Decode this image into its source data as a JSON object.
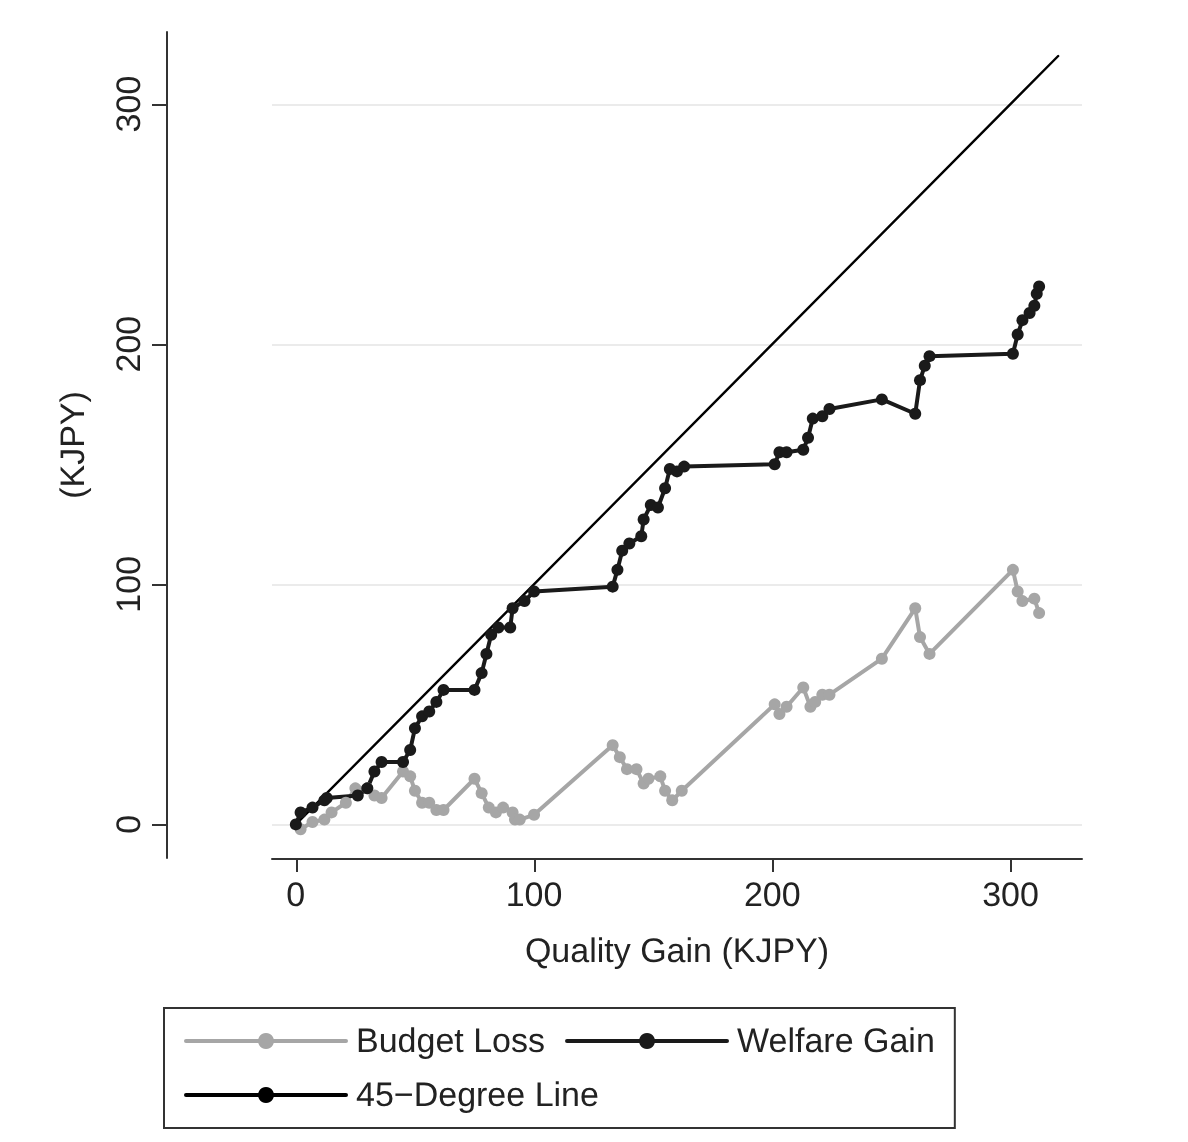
{
  "chart_data": {
    "type": "line",
    "xlabel": "Quality Gain (KJPY)",
    "ylabel": "(KJPY)",
    "xlim": [
      -10,
      330
    ],
    "ylim": [
      -14,
      330
    ],
    "xticks": [
      0,
      100,
      200,
      300
    ],
    "yticks": [
      0,
      100,
      200,
      300
    ],
    "grid": "y",
    "legend": "bottom",
    "series": [
      {
        "name": "Budget Loss",
        "color": "#a6a6a6",
        "marker": "circle",
        "x": [
          2,
          7,
          12,
          15,
          21,
          25,
          30,
          33,
          36,
          45,
          48,
          50,
          53,
          56,
          59,
          62,
          75,
          78,
          81,
          84,
          87,
          91,
          92,
          94,
          100,
          133,
          136,
          139,
          143,
          146,
          148,
          153,
          155,
          158,
          162,
          201,
          203,
          206,
          213,
          216,
          218,
          221,
          224,
          246,
          260,
          262,
          266,
          301,
          303,
          305,
          310,
          312
        ],
        "values": [
          -2,
          1,
          2,
          5,
          9,
          15,
          15,
          12,
          11,
          22,
          20,
          14,
          9,
          9,
          6,
          6,
          19,
          13,
          7,
          5,
          7,
          5,
          2,
          2,
          4,
          33,
          28,
          23,
          23,
          17,
          19,
          20,
          14,
          10,
          14,
          50,
          46,
          49,
          57,
          49,
          51,
          54,
          54,
          69,
          90,
          78,
          71,
          106,
          97,
          93,
          94,
          88
        ]
      },
      {
        "name": "Welfare Gain",
        "color": "#1a1a1a",
        "marker": "circle",
        "x": [
          0,
          2,
          7,
          12,
          13,
          26,
          30,
          33,
          36,
          45,
          48,
          50,
          53,
          56,
          59,
          62,
          75,
          78,
          80,
          82,
          85,
          90,
          91,
          96,
          100,
          133,
          135,
          137,
          140,
          145,
          146,
          149,
          152,
          155,
          157,
          160,
          163,
          201,
          203,
          206,
          213,
          215,
          217,
          221,
          224,
          246,
          260,
          262,
          264,
          266,
          301,
          303,
          305,
          308,
          310,
          311,
          312
        ],
        "values": [
          0,
          5,
          7,
          10,
          11,
          12,
          15,
          22,
          26,
          26,
          31,
          40,
          45,
          47,
          51,
          56,
          56,
          63,
          71,
          79,
          82,
          82,
          90,
          93,
          97,
          99,
          106,
          114,
          117,
          120,
          127,
          133,
          132,
          140,
          148,
          147,
          149,
          150,
          155,
          155,
          156,
          161,
          169,
          170,
          173,
          177,
          171,
          185,
          191,
          195,
          196,
          204,
          210,
          213,
          216,
          221,
          224
        ]
      },
      {
        "name": "45−Degree Line",
        "color": "#000000",
        "marker": "none",
        "x": [
          0,
          320
        ],
        "values": [
          0,
          320
        ]
      }
    ]
  }
}
